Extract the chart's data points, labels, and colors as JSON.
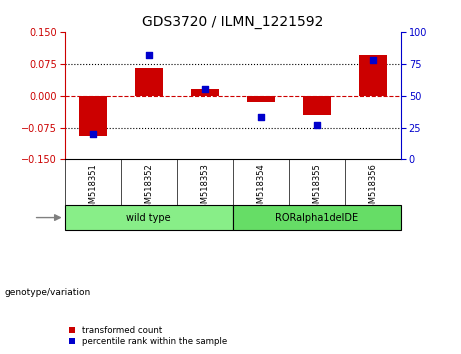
{
  "title": "GDS3720 / ILMN_1221592",
  "samples": [
    "GSM518351",
    "GSM518352",
    "GSM518353",
    "GSM518354",
    "GSM518355",
    "GSM518356"
  ],
  "red_values": [
    -0.095,
    0.065,
    0.015,
    -0.015,
    -0.045,
    0.095
  ],
  "blue_values": [
    20,
    82,
    55,
    33,
    27,
    78
  ],
  "ylim_left": [
    -0.15,
    0.15
  ],
  "ylim_right": [
    0,
    100
  ],
  "yticks_left": [
    -0.15,
    -0.075,
    0,
    0.075,
    0.15
  ],
  "yticks_right": [
    0,
    25,
    50,
    75,
    100
  ],
  "red_color": "#cc0000",
  "blue_color": "#0000cc",
  "bar_width": 0.5,
  "genotype_label": "genotype/variation",
  "legend_red": "transformed count",
  "legend_blue": "percentile rank within the sample",
  "tick_bg_color": "#c8c8c8",
  "title_fontsize": 10,
  "axis_fontsize": 7,
  "label_fontsize": 7,
  "groups": [
    {
      "label": "wild type",
      "start": 0,
      "end": 2,
      "color": "#88ee88"
    },
    {
      "label": "RORalpha1delDE",
      "start": 3,
      "end": 5,
      "color": "#66dd66"
    }
  ]
}
